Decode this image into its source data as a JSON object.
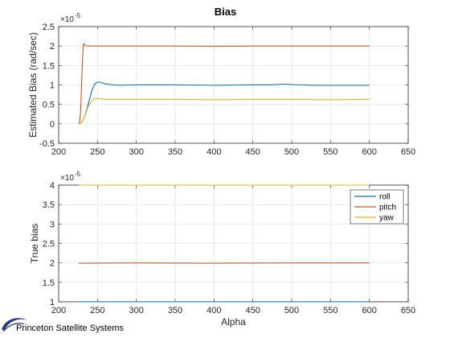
{
  "colors": {
    "roll": "#0072BD",
    "pitch": "#D95319",
    "yaw": "#EDB120",
    "logo": "#1f3b7a"
  },
  "footer": {
    "logo_icon": "princeton-swoosh-icon",
    "text": "Princeton Satellite Systems"
  },
  "chart_data": [
    {
      "type": "line",
      "title": "Bias",
      "xlabel": "",
      "ylabel": "Estimated Bias (rad/sec)",
      "y_exponent": "-5",
      "xlim": [
        200,
        650
      ],
      "ylim": [
        -0.5,
        2.5
      ],
      "xticks": [
        200,
        250,
        300,
        350,
        400,
        450,
        500,
        550,
        600,
        650
      ],
      "xtick_labels": [
        "200",
        "250",
        "300",
        "350",
        "400",
        "450",
        "500",
        "550",
        "600",
        "650"
      ],
      "yticks": [
        -0.5,
        0,
        0.5,
        1,
        1.5,
        2,
        2.5
      ],
      "ytick_labels": [
        "-0.5",
        "0",
        "0.5",
        "1",
        "1.5",
        "2",
        "2.5"
      ],
      "grid": true,
      "series": [
        {
          "key": "roll",
          "x": [
            226,
            228,
            230,
            232,
            234,
            236,
            238,
            240,
            242,
            244,
            246,
            248,
            250,
            253,
            256,
            260,
            265,
            270,
            280,
            300,
            350,
            400,
            450,
            470,
            490,
            510,
            530,
            550,
            570,
            600
          ],
          "values": [
            0,
            0.01,
            0.05,
            0.12,
            0.22,
            0.35,
            0.5,
            0.65,
            0.8,
            0.92,
            1.0,
            1.05,
            1.07,
            1.07,
            1.05,
            1.03,
            1.01,
            1.0,
            0.99,
            1.0,
            1.0,
            0.99,
            1.0,
            1.0,
            1.02,
            1.0,
            0.99,
            0.99,
            0.99,
            0.99
          ]
        },
        {
          "key": "pitch",
          "x": [
            226,
            227,
            228,
            229,
            230,
            231,
            232,
            233,
            234,
            236,
            240,
            250,
            300,
            350,
            400,
            450,
            500,
            550,
            600
          ],
          "values": [
            0,
            0.05,
            0.25,
            0.7,
            1.3,
            1.8,
            2.05,
            2.06,
            2.02,
            2.0,
            2.0,
            2.0,
            2.0,
            2.0,
            1.99,
            2.0,
            2.0,
            2.0,
            2.0
          ]
        },
        {
          "key": "yaw",
          "x": [
            226,
            228,
            230,
            232,
            234,
            236,
            238,
            240,
            242,
            244,
            246,
            248,
            250,
            255,
            260,
            300,
            350,
            400,
            450,
            500,
            550,
            600
          ],
          "values": [
            0,
            0.01,
            0.05,
            0.12,
            0.22,
            0.33,
            0.44,
            0.52,
            0.58,
            0.62,
            0.64,
            0.65,
            0.65,
            0.64,
            0.63,
            0.63,
            0.63,
            0.62,
            0.63,
            0.63,
            0.62,
            0.63
          ]
        }
      ]
    },
    {
      "type": "line",
      "title": "",
      "xlabel": "Alpha",
      "ylabel": "True bias",
      "y_exponent": "-5",
      "xlim": [
        200,
        650
      ],
      "ylim": [
        1,
        4
      ],
      "xticks": [
        200,
        250,
        300,
        350,
        400,
        450,
        500,
        550,
        600,
        650
      ],
      "xtick_labels": [
        "200",
        "250",
        "300",
        "350",
        "400",
        "450",
        "500",
        "550",
        "600",
        "650"
      ],
      "yticks": [
        1,
        1.5,
        2,
        2.5,
        3,
        3.5,
        4
      ],
      "ytick_labels": [
        "1",
        "1.5",
        "2",
        "2.5",
        "3",
        "3.5",
        "4"
      ],
      "grid": true,
      "legend": {
        "placement": "top-right",
        "entries": [
          "roll",
          "pitch",
          "yaw"
        ]
      },
      "series": [
        {
          "key": "roll",
          "name": "roll",
          "x": [
            226,
            600
          ],
          "values": [
            1.0,
            1.0
          ]
        },
        {
          "key": "pitch",
          "name": "pitch",
          "x": [
            226,
            300,
            400,
            500,
            600
          ],
          "values": [
            1.99,
            2.0,
            1.99,
            2.0,
            2.0
          ]
        },
        {
          "key": "yaw",
          "name": "yaw",
          "x": [
            226,
            600
          ],
          "values": [
            4.0,
            4.0
          ]
        }
      ]
    }
  ]
}
